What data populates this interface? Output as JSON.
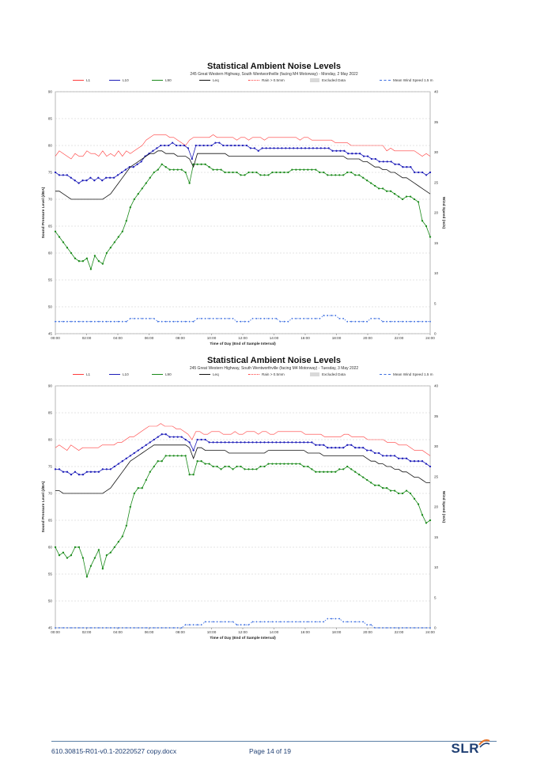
{
  "chart_data": [
    {
      "type": "line",
      "title": "Statistical Ambient Noise Levels",
      "subtitle": "245 Great Western Highway, South Wentworthville (facing M4 Motorway) - Monday, 2 May 2022",
      "xlabel": "Time of Day (End of Sample Interval)",
      "ylabel": "Sound Pressure Level (dBA)",
      "y2label": "Wind Speed (m/s)",
      "xticks": [
        "00:00",
        "02:00",
        "04:00",
        "06:00",
        "08:00",
        "10:00",
        "12:00",
        "14:00",
        "16:00",
        "18:00",
        "20:00",
        "22:00",
        "24:00"
      ],
      "yticks": [
        "45",
        "50",
        "55",
        "60",
        "65",
        "70",
        "75",
        "80",
        "85",
        "90"
      ],
      "y2ticks": [
        "0",
        "5",
        "10",
        "15",
        "20",
        "25",
        "30",
        "35",
        "40"
      ],
      "ylim": [
        45,
        90
      ],
      "y2lim": [
        0,
        40
      ],
      "grid": true,
      "legend": [
        "L1",
        "L10",
        "L90",
        "Leq",
        "Rain > 0.5mm",
        "Excluded Data",
        "Mean Wind Speed 1.5 m"
      ],
      "series": [
        {
          "name": "L1",
          "color": "#ff3b3b",
          "values": [
            78,
            79,
            78.5,
            78,
            77.5,
            78.5,
            78,
            78,
            79,
            78.5,
            78.5,
            78,
            79,
            78,
            78.5,
            78,
            79,
            78,
            79,
            78.5,
            79,
            79.5,
            80,
            81,
            81.5,
            82,
            82,
            82,
            82,
            81.5,
            81.5,
            81,
            80.5,
            80,
            81,
            81.5,
            81.5,
            81.5,
            81.5,
            81.5,
            82,
            81.5,
            81.5,
            81.5,
            81.5,
            81.5,
            81,
            81.5,
            81.5,
            81,
            81.5,
            81.5,
            81.5,
            81,
            81.5,
            81.5,
            81.5,
            81.5,
            81.5,
            81.5,
            81.5,
            81.5,
            81,
            81.5,
            81.5,
            81,
            81,
            81,
            81,
            81,
            81,
            80.5,
            80.5,
            80.5,
            80.5,
            80,
            80,
            80,
            80,
            80,
            80,
            80,
            80,
            80,
            79,
            79.5,
            79,
            79,
            79,
            79,
            79,
            79,
            78.5,
            78,
            78.5,
            78
          ]
        },
        {
          "name": "L10",
          "color": "#1c1cb8",
          "values": [
            75,
            74.5,
            74.5,
            74.5,
            74,
            73.5,
            73,
            73.5,
            73.5,
            74,
            73.5,
            74,
            73.5,
            74,
            74,
            74,
            74.5,
            75,
            75.5,
            76,
            76,
            76.5,
            77,
            78,
            78.5,
            79,
            79.5,
            80,
            80,
            80,
            80.5,
            80,
            80,
            80,
            79.5,
            77.5,
            80,
            80,
            80,
            80,
            80,
            80.5,
            80.5,
            80,
            80,
            80,
            80,
            80,
            80,
            80,
            79.5,
            79.5,
            79,
            79.5,
            79.5,
            79.5,
            79.5,
            79.5,
            79.5,
            79.5,
            79.5,
            79.5,
            79.5,
            79.5,
            79.5,
            79.5,
            79.5,
            79.5,
            79.5,
            79.5,
            79.5,
            79,
            79,
            79,
            79,
            78.5,
            78.5,
            78.5,
            78.5,
            78,
            78,
            77.5,
            77.5,
            77,
            77,
            77,
            77,
            76.5,
            76.5,
            76,
            76,
            76,
            75,
            75,
            75,
            74.5,
            75
          ]
        },
        {
          "name": "L90",
          "color": "#1a8a1a",
          "values": [
            64,
            63,
            62,
            61,
            60,
            59,
            58.5,
            58.5,
            59,
            57,
            59.5,
            58.5,
            58,
            60,
            61,
            62,
            63,
            64,
            66,
            68.5,
            70,
            71,
            72,
            73,
            74,
            75,
            75.5,
            76.5,
            76,
            75.5,
            75.5,
            75.5,
            75.5,
            75,
            73,
            76.5,
            76.5,
            76.5,
            76.5,
            76,
            75.5,
            75.5,
            75.5,
            75,
            75,
            75,
            75,
            74.5,
            74.5,
            75,
            75,
            75,
            74.5,
            74.5,
            74.5,
            75,
            75,
            75,
            75,
            75,
            75.5,
            75.5,
            75.5,
            75.5,
            75.5,
            75.5,
            75.5,
            75,
            75,
            74.5,
            74.5,
            74.5,
            74.5,
            74.5,
            75,
            75,
            74.5,
            74.5,
            74,
            73.5,
            73,
            72.5,
            72,
            72,
            71.5,
            71.5,
            71,
            70.5,
            70,
            70.5,
            70.5,
            70,
            69.5,
            66,
            65,
            63
          ]
        },
        {
          "name": "Leq",
          "color": "#111111",
          "values": [
            71.5,
            71.5,
            71,
            70.5,
            70,
            70,
            70,
            70,
            70,
            70,
            70,
            70,
            70,
            70.5,
            71,
            72,
            73,
            74,
            75,
            76,
            76.5,
            77,
            77.5,
            78,
            78.5,
            78.5,
            79,
            79,
            78.5,
            78.5,
            78.5,
            78,
            78,
            78,
            77.5,
            76,
            78.5,
            78.5,
            78.5,
            78.5,
            78.5,
            78.5,
            78.5,
            78.5,
            78,
            78,
            78,
            78,
            78,
            78,
            78,
            78,
            78,
            78,
            78,
            78,
            78,
            78,
            78,
            78,
            78,
            78,
            78,
            78,
            78,
            78,
            78,
            78,
            78,
            78,
            78,
            78,
            78,
            78,
            77.5,
            77.5,
            77.5,
            77.5,
            77,
            77,
            76.5,
            76,
            76,
            75.5,
            75.5,
            75,
            75,
            74.5,
            74,
            74,
            73.5,
            73,
            72.5,
            72,
            71.5,
            71
          ]
        },
        {
          "name": "Mean Wind Speed 1.5 m",
          "color": "#3b6de0",
          "axis": "y2",
          "values": [
            2,
            2,
            2,
            2,
            2,
            2,
            2,
            2,
            2,
            2,
            2,
            2,
            2,
            2,
            2,
            2,
            2,
            2,
            2,
            2.5,
            2.5,
            2.5,
            2.5,
            2.5,
            2.5,
            2.5,
            2,
            2,
            2,
            2,
            2,
            2,
            2,
            2,
            2,
            2,
            2.5,
            2.5,
            2.5,
            2.5,
            2.5,
            2.5,
            2.5,
            2.5,
            2.5,
            2.5,
            2,
            2,
            2,
            2,
            2.5,
            2.5,
            2.5,
            2.5,
            2.5,
            2.5,
            2.5,
            2,
            2,
            2,
            2.5,
            2.5,
            2.5,
            2.5,
            2.5,
            2.5,
            2.5,
            2.5,
            3,
            3,
            3,
            3,
            2.5,
            2.5,
            2,
            2,
            2,
            2,
            2,
            2,
            2.5,
            2.5,
            2.5,
            2,
            2,
            2,
            2,
            2,
            2,
            2,
            2,
            2,
            2,
            2,
            2,
            2
          ]
        }
      ]
    },
    {
      "type": "line",
      "title": "Statistical Ambient Noise Levels",
      "subtitle": "245 Great Western Highway, South Wentworthville (facing M4 Motorway) - Tuesday, 3 May 2022",
      "xlabel": "Time of Day (End of Sample Interval)",
      "ylabel": "Sound Pressure Level (dBA)",
      "y2label": "Wind Speed (m/s)",
      "xticks": [
        "00:00",
        "02:00",
        "04:00",
        "06:00",
        "08:00",
        "10:00",
        "12:00",
        "14:00",
        "16:00",
        "18:00",
        "20:00",
        "22:00",
        "24:00"
      ],
      "yticks": [
        "45",
        "50",
        "55",
        "60",
        "65",
        "70",
        "75",
        "80",
        "85",
        "90"
      ],
      "y2ticks": [
        "0",
        "5",
        "10",
        "15",
        "20",
        "25",
        "30",
        "35",
        "40"
      ],
      "ylim": [
        45,
        90
      ],
      "y2lim": [
        0,
        40
      ],
      "grid": true,
      "legend": [
        "L1",
        "L10",
        "L90",
        "Leq",
        "Rain > 0.5mm",
        "Excluded Data",
        "Mean Wind Speed 1.5 m"
      ],
      "series": [
        {
          "name": "L1",
          "color": "#ff3b3b",
          "values": [
            78.5,
            79,
            78.5,
            78,
            79,
            78.5,
            78,
            78.5,
            78.5,
            78.5,
            78.5,
            78.5,
            79,
            79,
            79,
            79,
            79.5,
            79.5,
            80,
            80.5,
            80.5,
            81,
            81.5,
            82,
            82.5,
            82.5,
            82.5,
            83,
            82.5,
            82.5,
            82.5,
            82,
            82,
            81.5,
            81,
            80,
            81.5,
            81.5,
            81,
            81,
            81.5,
            81.5,
            81.5,
            81,
            81,
            81,
            81.5,
            81,
            81,
            81.5,
            81.5,
            81.5,
            81,
            81.5,
            81.5,
            81,
            81,
            81.5,
            81.5,
            81.5,
            81.5,
            81.5,
            81.5,
            81.5,
            81,
            81,
            81,
            81,
            81,
            80.5,
            80.5,
            80.5,
            80.5,
            80.5,
            81,
            81,
            80.5,
            80.5,
            80.5,
            80.5,
            80,
            80,
            80,
            80,
            80,
            79.5,
            79.5,
            79.5,
            79,
            79,
            79,
            78.5,
            78,
            78,
            78,
            77.5,
            77
          ]
        },
        {
          "name": "L10",
          "color": "#1c1cb8",
          "values": [
            74.5,
            74.5,
            74,
            74,
            73.5,
            74,
            73.5,
            73.5,
            74,
            74,
            74,
            74,
            74.5,
            74.5,
            74.5,
            75,
            75.5,
            76,
            76.5,
            77,
            77.5,
            78,
            78.5,
            79,
            79.5,
            80,
            80.5,
            81,
            81,
            80.5,
            80.5,
            80.5,
            80.5,
            80,
            79.5,
            78,
            80,
            80,
            80,
            79.5,
            79.5,
            79.5,
            79.5,
            79.5,
            79.5,
            79.5,
            79.5,
            79.5,
            79.5,
            79.5,
            79.5,
            79.5,
            79.5,
            79.5,
            79.5,
            79.5,
            79.5,
            79.5,
            79.5,
            79.5,
            79.5,
            79.5,
            79.5,
            79.5,
            79.5,
            79.5,
            79,
            79,
            79,
            78.5,
            78.5,
            78.5,
            78.5,
            78.5,
            79,
            79,
            78.5,
            78.5,
            78.5,
            78,
            78,
            77.5,
            77.5,
            77,
            77,
            77,
            77,
            76.5,
            76.5,
            76.5,
            76,
            76,
            76,
            76,
            75.5,
            75
          ]
        },
        {
          "name": "L90",
          "color": "#1a8a1a",
          "values": [
            60,
            58.5,
            59,
            58,
            58.5,
            60,
            60,
            58,
            54.5,
            56.5,
            58,
            59.5,
            56,
            58.5,
            59,
            60,
            61,
            62,
            64,
            67.5,
            70,
            71,
            71,
            72.5,
            74,
            75,
            76,
            76,
            77,
            77,
            77,
            77,
            77,
            77,
            73.5,
            73.5,
            76,
            76,
            75.5,
            75.5,
            75,
            75,
            74.5,
            75,
            75,
            74.5,
            75,
            75,
            74.5,
            74.5,
            74.5,
            74.5,
            75,
            75,
            75.5,
            75.5,
            75.5,
            75.5,
            75.5,
            75.5,
            75.5,
            75.5,
            75.5,
            75,
            75,
            74.5,
            74,
            74,
            74,
            74,
            74,
            74,
            74.5,
            74.5,
            75,
            74.5,
            74,
            73.5,
            73,
            72.5,
            72,
            71.5,
            71.5,
            71,
            71,
            70.5,
            70.5,
            70,
            70,
            70.5,
            70,
            69,
            68,
            66,
            64.5,
            65
          ]
        },
        {
          "name": "Leq",
          "color": "#111111",
          "values": [
            70.5,
            70.5,
            70,
            70,
            70,
            70,
            70,
            70,
            70,
            70,
            70,
            70,
            70,
            70.5,
            71,
            72,
            73,
            74,
            75,
            76,
            76.5,
            77,
            77.5,
            78,
            78.5,
            79,
            79,
            79,
            79,
            79,
            79,
            79,
            79,
            79,
            78.5,
            76.5,
            78.5,
            78.5,
            78,
            78,
            78,
            78,
            78,
            78,
            77.5,
            77.5,
            77.5,
            77.5,
            77.5,
            77.5,
            77.5,
            77.5,
            77.5,
            77.5,
            78,
            78,
            78,
            78,
            78,
            78,
            78,
            78,
            78,
            78,
            77.5,
            77.5,
            77.5,
            77.5,
            77,
            77,
            77,
            77,
            77,
            77,
            77,
            77,
            77,
            77,
            77,
            76.5,
            76,
            76,
            75.5,
            75.5,
            75,
            75,
            74.5,
            74.5,
            74,
            74,
            73.5,
            73,
            73,
            72.5,
            72,
            72
          ]
        },
        {
          "name": "Mean Wind Speed 1.5 m",
          "color": "#3b6de0",
          "axis": "y2",
          "values": [
            0,
            0,
            0,
            0,
            0,
            0,
            0,
            0,
            0,
            0,
            0,
            0,
            0,
            0,
            0,
            0,
            0,
            0,
            0,
            0,
            0,
            0,
            0,
            0,
            0,
            0,
            0,
            0,
            0,
            0,
            0,
            0,
            0,
            0.5,
            0.5,
            0.5,
            0.5,
            0.5,
            1,
            1,
            1,
            1,
            1,
            1,
            1,
            1,
            0.5,
            0.5,
            0.5,
            0.5,
            1,
            1,
            1,
            1,
            1,
            1,
            1,
            1,
            1,
            1,
            1,
            1,
            1,
            1,
            1,
            1,
            1,
            1,
            1,
            1.5,
            1.5,
            1.5,
            1.5,
            1,
            1,
            1,
            1,
            1,
            1,
            0.5,
            0.5,
            0,
            0,
            0,
            0,
            0,
            0,
            0,
            0,
            0,
            0,
            0,
            0,
            0,
            0,
            0
          ]
        }
      ]
    }
  ],
  "footer": {
    "doc_ref": "610.30815-R01-v0.1-20220527 copy.docx",
    "page": "Page 14 of 19",
    "logo_text": "SLR"
  }
}
